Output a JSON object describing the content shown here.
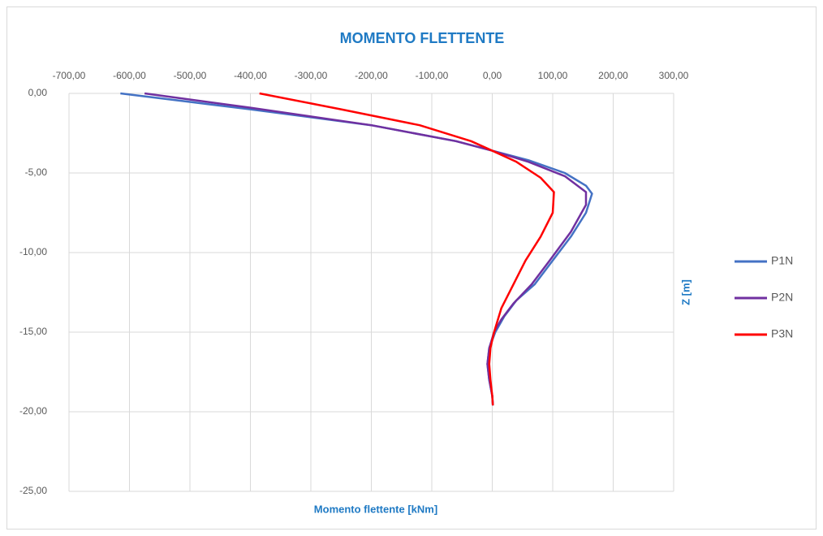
{
  "chart_data": {
    "type": "line",
    "title": "MOMENTO FLETTENTE",
    "x_label": "Momento flettente [kNm]",
    "y_label": "Z [m]",
    "xlim": [
      -700,
      300
    ],
    "xticks": [
      {
        "value": -700,
        "label": "-700,00"
      },
      {
        "value": -600,
        "label": "-600,00"
      },
      {
        "value": -500,
        "label": "-500,00"
      },
      {
        "value": -400,
        "label": "-400,00"
      },
      {
        "value": -300,
        "label": "-300,00"
      },
      {
        "value": -200,
        "label": "-200,00"
      },
      {
        "value": -100,
        "label": "-100,00"
      },
      {
        "value": 0,
        "label": "0,00"
      },
      {
        "value": 100,
        "label": "100,00"
      },
      {
        "value": 200,
        "label": "200,00"
      },
      {
        "value": 300,
        "label": "300,00"
      }
    ],
    "ylim": [
      -25,
      0
    ],
    "yticks": [
      {
        "value": 0,
        "label": "0,00"
      },
      {
        "value": -5,
        "label": "-5,00"
      },
      {
        "value": -10,
        "label": "-10,00"
      },
      {
        "value": -15,
        "label": "-15,00"
      },
      {
        "value": -20,
        "label": "-20,00"
      },
      {
        "value": -25,
        "label": "-25,00"
      }
    ],
    "grid": true,
    "legend": "right",
    "series": [
      {
        "name": "P1N",
        "color": "#4472c4",
        "x": [
          -615,
          -400,
          -200,
          -60,
          0,
          60,
          120,
          155,
          165,
          155,
          130,
          100,
          70,
          40,
          20,
          5,
          -5,
          -8,
          -5,
          0,
          1
        ],
        "y": [
          0,
          -1,
          -2,
          -3,
          -3.6,
          -4.2,
          -5,
          -5.8,
          -6.3,
          -7.5,
          -9,
          -10.5,
          -12,
          -13,
          -14,
          -15,
          -16,
          -17,
          -18,
          -19,
          -19.6
        ]
      },
      {
        "name": "P2N",
        "color": "#7030a0",
        "x": [
          -575,
          -400,
          -200,
          -60,
          0,
          60,
          120,
          155,
          155,
          130,
          95,
          65,
          35,
          15,
          3,
          -5,
          -8,
          -5,
          0,
          1
        ],
        "y": [
          0,
          -0.9,
          -2,
          -3,
          -3.6,
          -4.3,
          -5.2,
          -6.2,
          -7,
          -8.7,
          -10.5,
          -12,
          -13.2,
          -14.2,
          -15,
          -16,
          -17,
          -18,
          -19,
          -19.6
        ]
      },
      {
        "name": "P3N",
        "color": "#ff0000",
        "x": [
          -385,
          -250,
          -120,
          -35,
          0,
          40,
          80,
          102,
          100,
          80,
          55,
          35,
          15,
          3,
          -3,
          -5,
          -3,
          0,
          1
        ],
        "y": [
          0,
          -1,
          -2,
          -3,
          -3.6,
          -4.3,
          -5.3,
          -6.2,
          -7.5,
          -9,
          -10.5,
          -12,
          -13.5,
          -15,
          -16,
          -17,
          -18,
          -19,
          -19.6
        ]
      }
    ]
  }
}
